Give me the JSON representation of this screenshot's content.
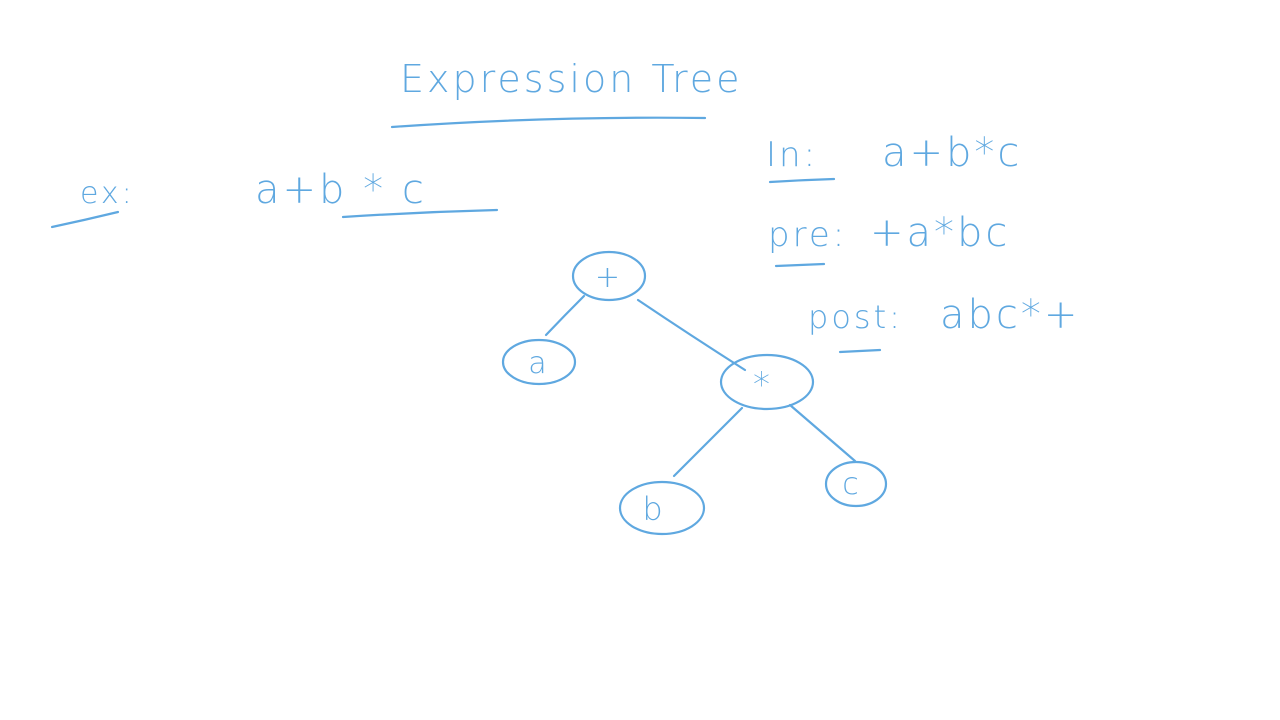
{
  "ink_color": "#5fa8e0",
  "title": "Expression Tree",
  "example": {
    "label": "ex:",
    "expression": "a+b * c"
  },
  "traversals": {
    "inorder": {
      "label": "In:",
      "value": "a+b*c"
    },
    "preorder": {
      "label": "pre:",
      "value": "+a*bc"
    },
    "postorder": {
      "label": "post:",
      "value": "abc*+"
    }
  },
  "tree": {
    "nodes": {
      "root": "+",
      "left": "a",
      "right": "*",
      "right_left": "b",
      "right_right": "c"
    }
  }
}
